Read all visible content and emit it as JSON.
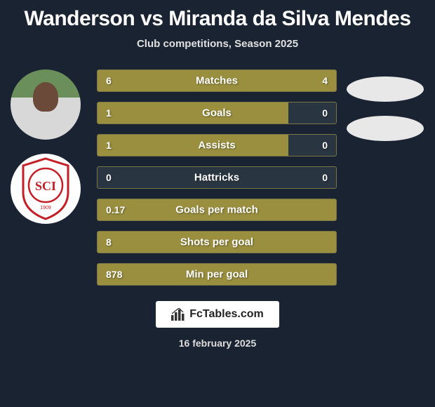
{
  "title": "Wanderson vs Miranda da Silva Mendes",
  "subtitle": "Club competitions, Season 2025",
  "bar_color": "#9a8f3f",
  "bar_border_color": "#7a7544",
  "bg_color": "#1a2332",
  "stats": [
    {
      "label": "Matches",
      "left_val": "6",
      "right_val": "4",
      "left_pct": 60,
      "right_pct": 40
    },
    {
      "label": "Goals",
      "left_val": "1",
      "right_val": "0",
      "left_pct": 80,
      "right_pct": 0
    },
    {
      "label": "Assists",
      "left_val": "1",
      "right_val": "0",
      "left_pct": 80,
      "right_pct": 0
    },
    {
      "label": "Hattricks",
      "left_val": "0",
      "right_val": "0",
      "left_pct": 0,
      "right_pct": 0
    },
    {
      "label": "Goals per match",
      "left_val": "0.17",
      "right_val": "",
      "left_pct": 100,
      "right_pct": 0
    },
    {
      "label": "Shots per goal",
      "left_val": "8",
      "right_val": "",
      "left_pct": 100,
      "right_pct": 0
    },
    {
      "label": "Min per goal",
      "left_val": "878",
      "right_val": "",
      "left_pct": 100,
      "right_pct": 0
    }
  ],
  "logo_text": "FcTables.com",
  "date": "16 february 2025",
  "club_badge_color": "#c41e26"
}
